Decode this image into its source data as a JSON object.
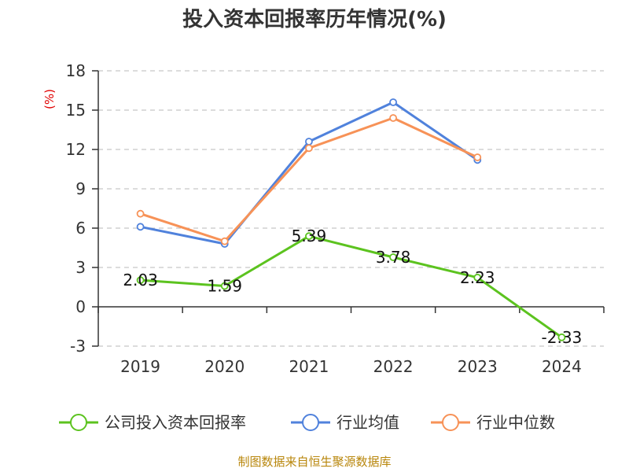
{
  "colors": {
    "company": "#5cc31f",
    "industry_avg": "#5082dc",
    "industry_median": "#f79257",
    "grid": "#c8c8c8",
    "axis": "#333333"
  },
  "chart_data": {
    "type": "line",
    "title": "投入资本回报率历年情况(%)",
    "ylabel": "(%)",
    "ylim": [
      -3,
      18
    ],
    "yticks": [
      "18",
      "15",
      "12",
      "9",
      "6",
      "3",
      "0",
      "-3"
    ],
    "categories": [
      "2019",
      "2020",
      "2021",
      "2022",
      "2023",
      "2024"
    ],
    "grid": true,
    "legend_position": "bottom",
    "series": [
      {
        "name": "公司投入资本回报率",
        "key": "company",
        "values": [
          2.03,
          1.59,
          5.39,
          3.78,
          2.23,
          -2.33
        ],
        "labels": [
          "2.03",
          "1.59",
          "5.39",
          "3.78",
          "2.23",
          "-2.33"
        ]
      },
      {
        "name": "行业均值",
        "key": "industry_avg",
        "values": [
          6.1,
          4.8,
          12.6,
          15.6,
          11.2,
          null
        ]
      },
      {
        "name": "行业中位数",
        "key": "industry_median",
        "values": [
          7.1,
          5.0,
          12.1,
          14.4,
          11.4,
          null
        ]
      }
    ],
    "source": "制图数据来自恒生聚源数据库"
  }
}
